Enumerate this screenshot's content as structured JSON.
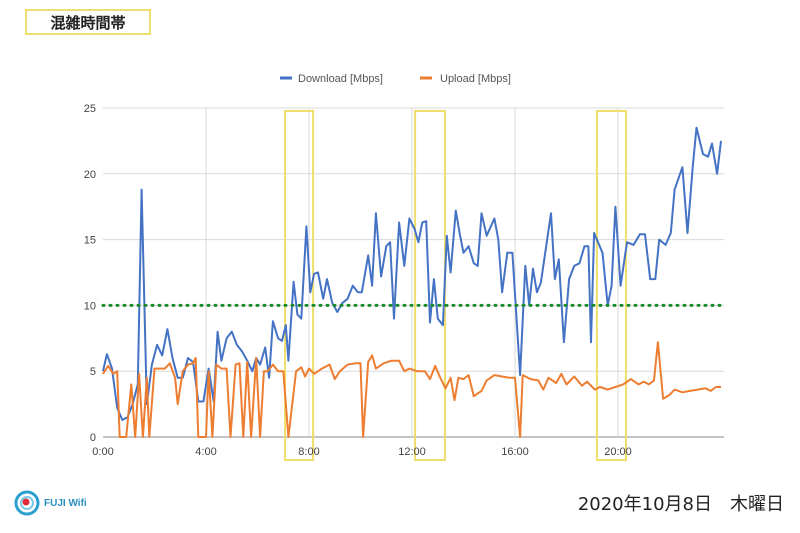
{
  "header": {
    "title": "混雑時間帯"
  },
  "footer": {
    "date": "2020年10月8日　木曜日",
    "logo_text": "FUJI Wifi"
  },
  "colors": {
    "download": "#4472c4",
    "upload": "#ed7d31",
    "threshold": "#1a8a2a",
    "highlight": "#f0de6a",
    "grid": "#d9d9d9"
  },
  "chart_data": {
    "type": "line",
    "title": "",
    "xlabel": "",
    "ylabel": "",
    "xlim": [
      0,
      24
    ],
    "ylim": [
      0,
      25
    ],
    "yticks": [
      0,
      5,
      10,
      15,
      20,
      25
    ],
    "xticks": [
      {
        "v": 0,
        "label": "0:00"
      },
      {
        "v": 4,
        "label": "4:00"
      },
      {
        "v": 8,
        "label": "8:00"
      },
      {
        "v": 12,
        "label": "12:00"
      },
      {
        "v": 16,
        "label": "16:00"
      },
      {
        "v": 20,
        "label": "20:00"
      }
    ],
    "grid": true,
    "legend_position": "top-center",
    "threshold": 10,
    "highlight_ranges_hours": [
      [
        7.07,
        8.16
      ],
      [
        12.12,
        13.28
      ],
      [
        19.18,
        20.31
      ]
    ],
    "series": [
      {
        "name": "Download [Mbps]",
        "points": [
          [
            0,
            5
          ],
          [
            0.15,
            6.3
          ],
          [
            0.35,
            5.2
          ],
          [
            0.55,
            2.2
          ],
          [
            0.75,
            1.3
          ],
          [
            0.95,
            1.5
          ],
          [
            1.15,
            2.5
          ],
          [
            1.35,
            4
          ],
          [
            1.5,
            18.8
          ],
          [
            1.7,
            2.5
          ],
          [
            1.9,
            5.5
          ],
          [
            2.1,
            7
          ],
          [
            2.3,
            6.2
          ],
          [
            2.5,
            8.2
          ],
          [
            2.7,
            6
          ],
          [
            2.9,
            4.5
          ],
          [
            3.1,
            4.5
          ],
          [
            3.3,
            6
          ],
          [
            3.5,
            5.7
          ],
          [
            3.7,
            2.7
          ],
          [
            3.9,
            2.7
          ],
          [
            4.1,
            5.2
          ],
          [
            4.3,
            2.7
          ],
          [
            4.45,
            8
          ],
          [
            4.6,
            5.8
          ],
          [
            4.8,
            7.5
          ],
          [
            5.0,
            8
          ],
          [
            5.2,
            7
          ],
          [
            5.4,
            6.5
          ],
          [
            5.6,
            5.8
          ],
          [
            5.8,
            5
          ],
          [
            5.95,
            6
          ],
          [
            6.1,
            5.5
          ],
          [
            6.3,
            6.8
          ],
          [
            6.45,
            4.5
          ],
          [
            6.6,
            8.8
          ],
          [
            6.8,
            7.5
          ],
          [
            6.95,
            7.3
          ],
          [
            7.1,
            8.5
          ],
          [
            7.2,
            5.8
          ],
          [
            7.4,
            11.8
          ],
          [
            7.55,
            9.3
          ],
          [
            7.7,
            9
          ],
          [
            7.9,
            16
          ],
          [
            8.05,
            11
          ],
          [
            8.2,
            12.4
          ],
          [
            8.35,
            12.5
          ],
          [
            8.55,
            10.5
          ],
          [
            8.7,
            12
          ],
          [
            8.9,
            10.2
          ],
          [
            9.1,
            9.5
          ],
          [
            9.3,
            10.2
          ],
          [
            9.5,
            10.5
          ],
          [
            9.7,
            11.5
          ],
          [
            9.9,
            11
          ],
          [
            10.05,
            11
          ],
          [
            10.3,
            13.8
          ],
          [
            10.45,
            11.5
          ],
          [
            10.6,
            17
          ],
          [
            10.8,
            12.2
          ],
          [
            11.0,
            14.5
          ],
          [
            11.15,
            14.8
          ],
          [
            11.3,
            9
          ],
          [
            11.5,
            16.3
          ],
          [
            11.7,
            13
          ],
          [
            11.9,
            16.6
          ],
          [
            12.1,
            15.8
          ],
          [
            12.25,
            14.8
          ],
          [
            12.4,
            16.3
          ],
          [
            12.55,
            16.4
          ],
          [
            12.7,
            8.7
          ],
          [
            12.85,
            12
          ],
          [
            13.0,
            9
          ],
          [
            13.2,
            8.5
          ],
          [
            13.35,
            15.3
          ],
          [
            13.5,
            12.5
          ],
          [
            13.7,
            17.2
          ],
          [
            13.85,
            15.5
          ],
          [
            14.0,
            14
          ],
          [
            14.2,
            14.5
          ],
          [
            14.4,
            13.2
          ],
          [
            14.55,
            13
          ],
          [
            14.7,
            17
          ],
          [
            14.9,
            15.3
          ],
          [
            15.2,
            16.6
          ],
          [
            15.35,
            15
          ],
          [
            15.5,
            11
          ],
          [
            15.7,
            14
          ],
          [
            15.9,
            14
          ],
          [
            16.2,
            4.7
          ],
          [
            16.4,
            13
          ],
          [
            16.55,
            10
          ],
          [
            16.7,
            12.8
          ],
          [
            16.85,
            11
          ],
          [
            17.0,
            11.7
          ],
          [
            17.4,
            17
          ],
          [
            17.55,
            12
          ],
          [
            17.7,
            13.5
          ],
          [
            17.9,
            7.2
          ],
          [
            18.1,
            12
          ],
          [
            18.3,
            13
          ],
          [
            18.5,
            13.2
          ],
          [
            18.7,
            14.5
          ],
          [
            18.85,
            14.5
          ],
          [
            18.95,
            7.2
          ],
          [
            19.07,
            15.5
          ],
          [
            19.4,
            14
          ],
          [
            19.6,
            10
          ],
          [
            19.75,
            11.5
          ],
          [
            19.9,
            17.5
          ],
          [
            20.1,
            11.5
          ],
          [
            20.35,
            14.8
          ],
          [
            20.6,
            14.6
          ],
          [
            20.85,
            15.4
          ],
          [
            21.05,
            15.4
          ],
          [
            21.25,
            12
          ],
          [
            21.45,
            12
          ],
          [
            21.6,
            15
          ],
          [
            21.85,
            14.6
          ],
          [
            22.05,
            15.5
          ],
          [
            22.2,
            18.8
          ],
          [
            22.5,
            20.5
          ],
          [
            22.7,
            15.5
          ],
          [
            22.9,
            20.5
          ],
          [
            23.05,
            23.5
          ],
          [
            23.3,
            21.5
          ],
          [
            23.5,
            21.3
          ],
          [
            23.65,
            22.3
          ],
          [
            23.85,
            20
          ],
          [
            24.0,
            22.5
          ]
        ]
      },
      {
        "name": "Upload [Mbps]",
        "points": [
          [
            0,
            4.8
          ],
          [
            0.2,
            5.4
          ],
          [
            0.4,
            4.8
          ],
          [
            0.55,
            5
          ],
          [
            0.65,
            0
          ],
          [
            0.9,
            0
          ],
          [
            1.1,
            4
          ],
          [
            1.25,
            0
          ],
          [
            1.4,
            4.8
          ],
          [
            1.55,
            0
          ],
          [
            1.7,
            4.5
          ],
          [
            1.8,
            0
          ],
          [
            2.0,
            5.2
          ],
          [
            2.4,
            5.2
          ],
          [
            2.6,
            5.6
          ],
          [
            2.8,
            4.5
          ],
          [
            2.9,
            2.5
          ],
          [
            3.1,
            5
          ],
          [
            3.3,
            5.5
          ],
          [
            3.5,
            5.6
          ],
          [
            3.6,
            6
          ],
          [
            3.7,
            0
          ],
          [
            3.9,
            0
          ],
          [
            4.0,
            0
          ],
          [
            4.1,
            5
          ],
          [
            4.25,
            0
          ],
          [
            4.4,
            5.5
          ],
          [
            4.6,
            5.2
          ],
          [
            4.8,
            5.2
          ],
          [
            4.95,
            0
          ],
          [
            5.15,
            5.5
          ],
          [
            5.3,
            5.6
          ],
          [
            5.45,
            0
          ],
          [
            5.6,
            5.7
          ],
          [
            5.75,
            0
          ],
          [
            5.95,
            6
          ],
          [
            6.1,
            0
          ],
          [
            6.25,
            5
          ],
          [
            6.4,
            5
          ],
          [
            6.6,
            5.5
          ],
          [
            6.8,
            5
          ],
          [
            7.0,
            5
          ],
          [
            7.2,
            0
          ],
          [
            7.5,
            5
          ],
          [
            7.7,
            5.3
          ],
          [
            7.85,
            4.6
          ],
          [
            8.0,
            5.2
          ],
          [
            8.2,
            4.8
          ],
          [
            8.5,
            5.2
          ],
          [
            8.8,
            5.5
          ],
          [
            9.0,
            4.4
          ],
          [
            9.2,
            5
          ],
          [
            9.5,
            5.5
          ],
          [
            9.8,
            5.6
          ],
          [
            10.0,
            5.6
          ],
          [
            10.1,
            0
          ],
          [
            10.3,
            5.7
          ],
          [
            10.45,
            6.2
          ],
          [
            10.6,
            5.2
          ],
          [
            10.9,
            5.6
          ],
          [
            11.2,
            5.8
          ],
          [
            11.5,
            5.8
          ],
          [
            11.7,
            5
          ],
          [
            11.9,
            5.2
          ],
          [
            12.2,
            5
          ],
          [
            12.5,
            5
          ],
          [
            12.7,
            4.4
          ],
          [
            12.9,
            5.4
          ],
          [
            13.1,
            4.5
          ],
          [
            13.3,
            3.7
          ],
          [
            13.5,
            4.5
          ],
          [
            13.65,
            2.8
          ],
          [
            13.8,
            4.5
          ],
          [
            14.0,
            4.4
          ],
          [
            14.2,
            4.7
          ],
          [
            14.4,
            3.1
          ],
          [
            14.7,
            3.5
          ],
          [
            14.9,
            4.3
          ],
          [
            15.2,
            4.7
          ],
          [
            15.5,
            4.6
          ],
          [
            15.8,
            4.5
          ],
          [
            16.0,
            4.5
          ],
          [
            16.2,
            0
          ],
          [
            16.3,
            4.7
          ],
          [
            16.6,
            4.4
          ],
          [
            16.9,
            4.3
          ],
          [
            17.1,
            3.6
          ],
          [
            17.3,
            4.5
          ],
          [
            17.6,
            4.1
          ],
          [
            17.8,
            4.8
          ],
          [
            18.0,
            4
          ],
          [
            18.3,
            4.6
          ],
          [
            18.6,
            3.9
          ],
          [
            18.8,
            4.2
          ],
          [
            19.1,
            3.6
          ],
          [
            19.3,
            3.8
          ],
          [
            19.6,
            3.6
          ],
          [
            19.9,
            3.8
          ],
          [
            20.2,
            4
          ],
          [
            20.5,
            4.4
          ],
          [
            20.8,
            4
          ],
          [
            21.0,
            4.2
          ],
          [
            21.2,
            4
          ],
          [
            21.4,
            4.3
          ],
          [
            21.55,
            7.2
          ],
          [
            21.75,
            2.9
          ],
          [
            22.0,
            3.2
          ],
          [
            22.2,
            3.6
          ],
          [
            22.5,
            3.4
          ],
          [
            22.8,
            3.5
          ],
          [
            23.1,
            3.6
          ],
          [
            23.4,
            3.7
          ],
          [
            23.6,
            3.5
          ],
          [
            23.8,
            3.8
          ],
          [
            24.0,
            3.8
          ]
        ]
      }
    ]
  }
}
